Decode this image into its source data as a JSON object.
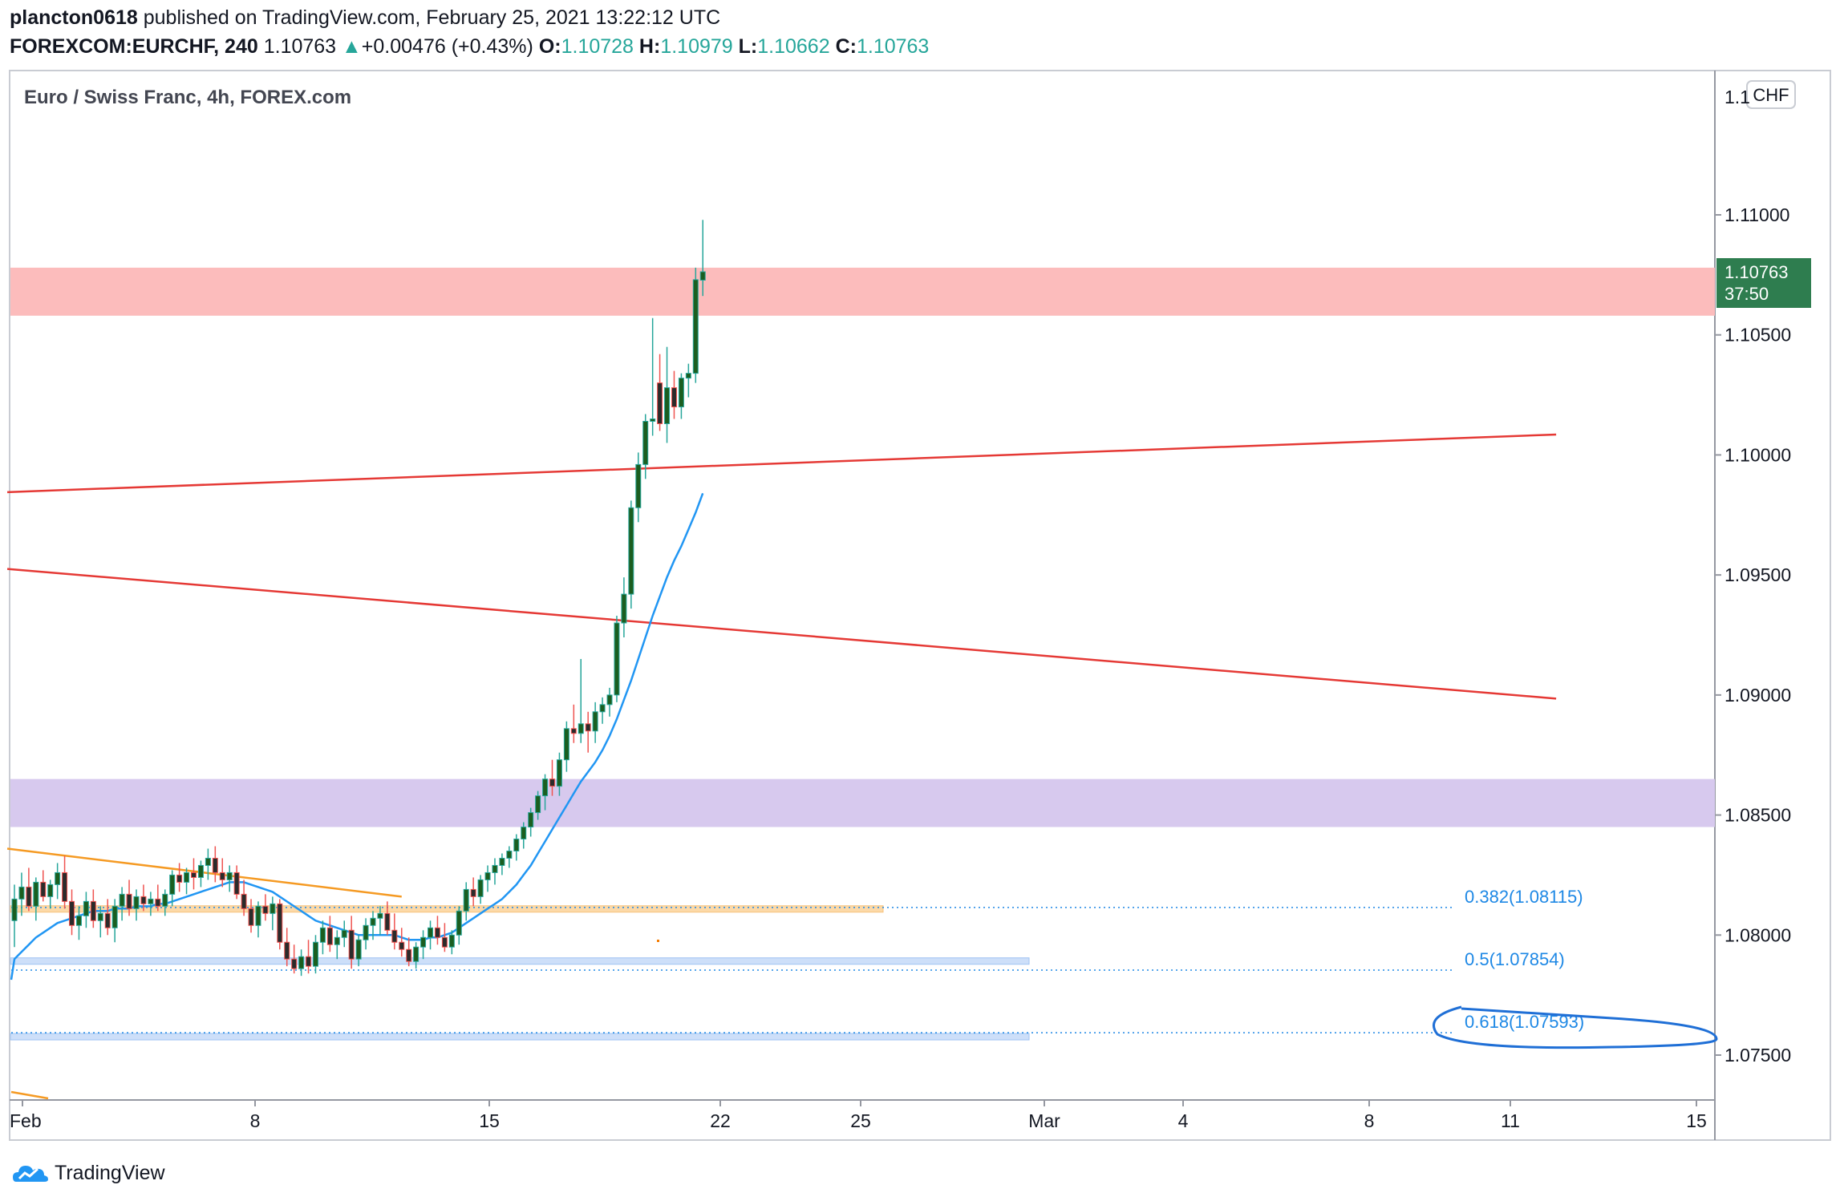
{
  "header": {
    "author": "plancton0618",
    "published": "published on TradingView.com, February 25, 2021 13:22:12 UTC",
    "symbol": "FOREXCOM:EURCHF, 240",
    "last": "1.10763",
    "change_arrow": "▲",
    "change": "+0.00476 (+0.43%)",
    "o_label": "O:",
    "o": "1.10728",
    "h_label": "H:",
    "h": "1.10979",
    "l_label": "L:",
    "l": "1.10662",
    "c_label": "C:",
    "c": "1.10763"
  },
  "footer": {
    "brand": "TradingView",
    "logo_icon": "tradingview-logo-icon"
  },
  "chart_data": {
    "type": "candlestick",
    "title": "Euro / Swiss Franc, 4h, FOREX.com",
    "currency_badge": "CHF",
    "last_price_label": "1.10763",
    "countdown_label": "37:50",
    "ylim": [
      1.0733,
      1.1178
    ],
    "y_ticks": [
      "1.11000",
      "1.10500",
      "1.10000",
      "1.09500",
      "1.09000",
      "1.08500",
      "1.08000",
      "1.07500"
    ],
    "y_top_tick_partial": "1.1",
    "x_ticks": [
      "Feb",
      "8",
      "15",
      "22",
      "25",
      "Mar",
      "4",
      "8",
      "11",
      "15"
    ],
    "colors": {
      "up": "#26a69a",
      "down": "#ef5350",
      "body_up": "#1b5e20",
      "body_down": "#2b2b2b",
      "resistance_zone": "#fcbcbc",
      "support_zone": "#d7c9ee",
      "orange_zone": "#fcd9a8",
      "blue_zone": "#cddff9",
      "trendline": "#e53935",
      "ma": "#2196f3",
      "fib": "#1e88e5",
      "wedge": "#f59a23",
      "last_price_bg": "#2e7d4f"
    },
    "zones": [
      {
        "name": "resistance",
        "from": 1.1058,
        "to": 1.1078,
        "color": "resistance_zone"
      },
      {
        "name": "support",
        "from": 1.0845,
        "to": 1.0865,
        "color": "support_zone"
      }
    ],
    "fib_levels": [
      {
        "label": "0.382(1.08115)",
        "price": 1.08115,
        "circled": false
      },
      {
        "label": "0.5(1.07854)",
        "price": 1.07854,
        "circled": false
      },
      {
        "label": "0.618(1.07593)",
        "price": 1.07593,
        "circled": true
      }
    ],
    "ohlc": [
      {
        "o": 1.0806,
        "h": 1.0821,
        "l": 1.0795,
        "c": 1.0815
      },
      {
        "o": 1.0815,
        "h": 1.0826,
        "l": 1.0808,
        "c": 1.082
      },
      {
        "o": 1.082,
        "h": 1.0828,
        "l": 1.081,
        "c": 1.0812
      },
      {
        "o": 1.0812,
        "h": 1.0824,
        "l": 1.0806,
        "c": 1.0822
      },
      {
        "o": 1.0822,
        "h": 1.0827,
        "l": 1.0814,
        "c": 1.0816
      },
      {
        "o": 1.0816,
        "h": 1.0823,
        "l": 1.0811,
        "c": 1.0821
      },
      {
        "o": 1.0821,
        "h": 1.083,
        "l": 1.0815,
        "c": 1.0826
      },
      {
        "o": 1.0826,
        "h": 1.0833,
        "l": 1.0811,
        "c": 1.0814
      },
      {
        "o": 1.0814,
        "h": 1.0819,
        "l": 1.08,
        "c": 1.0804
      },
      {
        "o": 1.0804,
        "h": 1.0812,
        "l": 1.0798,
        "c": 1.0808
      },
      {
        "o": 1.0808,
        "h": 1.0818,
        "l": 1.0803,
        "c": 1.0814
      },
      {
        "o": 1.0814,
        "h": 1.0819,
        "l": 1.0803,
        "c": 1.0806
      },
      {
        "o": 1.0806,
        "h": 1.0812,
        "l": 1.0799,
        "c": 1.0809
      },
      {
        "o": 1.0809,
        "h": 1.0815,
        "l": 1.08,
        "c": 1.0803
      },
      {
        "o": 1.0803,
        "h": 1.0815,
        "l": 1.0797,
        "c": 1.0812
      },
      {
        "o": 1.0812,
        "h": 1.082,
        "l": 1.0806,
        "c": 1.0817
      },
      {
        "o": 1.0817,
        "h": 1.0823,
        "l": 1.0808,
        "c": 1.0811
      },
      {
        "o": 1.0811,
        "h": 1.0819,
        "l": 1.0806,
        "c": 1.0816
      },
      {
        "o": 1.0816,
        "h": 1.0821,
        "l": 1.081,
        "c": 1.0813
      },
      {
        "o": 1.0813,
        "h": 1.0818,
        "l": 1.0808,
        "c": 1.0815
      },
      {
        "o": 1.0815,
        "h": 1.0821,
        "l": 1.081,
        "c": 1.0812
      },
      {
        "o": 1.0812,
        "h": 1.0819,
        "l": 1.0808,
        "c": 1.0817
      },
      {
        "o": 1.0817,
        "h": 1.0827,
        "l": 1.0812,
        "c": 1.0825
      },
      {
        "o": 1.0825,
        "h": 1.083,
        "l": 1.0818,
        "c": 1.0822
      },
      {
        "o": 1.0822,
        "h": 1.0828,
        "l": 1.0817,
        "c": 1.0826
      },
      {
        "o": 1.0826,
        "h": 1.0832,
        "l": 1.0819,
        "c": 1.0824
      },
      {
        "o": 1.0824,
        "h": 1.0831,
        "l": 1.082,
        "c": 1.0829
      },
      {
        "o": 1.0829,
        "h": 1.0836,
        "l": 1.0823,
        "c": 1.0832
      },
      {
        "o": 1.0832,
        "h": 1.0837,
        "l": 1.0822,
        "c": 1.0826
      },
      {
        "o": 1.0826,
        "h": 1.0832,
        "l": 1.082,
        "c": 1.0823
      },
      {
        "o": 1.0823,
        "h": 1.0829,
        "l": 1.0818,
        "c": 1.0826
      },
      {
        "o": 1.0826,
        "h": 1.0829,
        "l": 1.0815,
        "c": 1.0817
      },
      {
        "o": 1.0817,
        "h": 1.0823,
        "l": 1.0808,
        "c": 1.0811
      },
      {
        "o": 1.0811,
        "h": 1.0815,
        "l": 1.0801,
        "c": 1.0804
      },
      {
        "o": 1.0804,
        "h": 1.0814,
        "l": 1.0799,
        "c": 1.0812
      },
      {
        "o": 1.0812,
        "h": 1.0817,
        "l": 1.0806,
        "c": 1.0809
      },
      {
        "o": 1.0809,
        "h": 1.0816,
        "l": 1.0802,
        "c": 1.0813
      },
      {
        "o": 1.0813,
        "h": 1.0815,
        "l": 1.0794,
        "c": 1.0797
      },
      {
        "o": 1.0797,
        "h": 1.0803,
        "l": 1.0787,
        "c": 1.079
      },
      {
        "o": 1.079,
        "h": 1.0796,
        "l": 1.0784,
        "c": 1.0786
      },
      {
        "o": 1.0786,
        "h": 1.0794,
        "l": 1.0783,
        "c": 1.0791
      },
      {
        "o": 1.0791,
        "h": 1.0798,
        "l": 1.0784,
        "c": 1.0787
      },
      {
        "o": 1.0787,
        "h": 1.08,
        "l": 1.0784,
        "c": 1.0797
      },
      {
        "o": 1.0797,
        "h": 1.0806,
        "l": 1.0792,
        "c": 1.0803
      },
      {
        "o": 1.0803,
        "h": 1.0808,
        "l": 1.0793,
        "c": 1.0796
      },
      {
        "o": 1.0796,
        "h": 1.0802,
        "l": 1.079,
        "c": 1.0799
      },
      {
        "o": 1.0799,
        "h": 1.0806,
        "l": 1.0795,
        "c": 1.0802
      },
      {
        "o": 1.0802,
        "h": 1.0808,
        "l": 1.0786,
        "c": 1.079
      },
      {
        "o": 1.079,
        "h": 1.08,
        "l": 1.0787,
        "c": 1.0798
      },
      {
        "o": 1.0798,
        "h": 1.0807,
        "l": 1.0794,
        "c": 1.0804
      },
      {
        "o": 1.0804,
        "h": 1.081,
        "l": 1.0798,
        "c": 1.0807
      },
      {
        "o": 1.0807,
        "h": 1.0812,
        "l": 1.08,
        "c": 1.0809
      },
      {
        "o": 1.0809,
        "h": 1.0814,
        "l": 1.08,
        "c": 1.0802
      },
      {
        "o": 1.0802,
        "h": 1.0809,
        "l": 1.0794,
        "c": 1.0797
      },
      {
        "o": 1.0797,
        "h": 1.0803,
        "l": 1.0791,
        "c": 1.0794
      },
      {
        "o": 1.0794,
        "h": 1.0799,
        "l": 1.0787,
        "c": 1.0789
      },
      {
        "o": 1.0789,
        "h": 1.0797,
        "l": 1.0786,
        "c": 1.0795
      },
      {
        "o": 1.0795,
        "h": 1.0802,
        "l": 1.079,
        "c": 1.0799
      },
      {
        "o": 1.0799,
        "h": 1.0806,
        "l": 1.0794,
        "c": 1.0803
      },
      {
        "o": 1.0803,
        "h": 1.0808,
        "l": 1.0796,
        "c": 1.0799
      },
      {
        "o": 1.0799,
        "h": 1.0805,
        "l": 1.0793,
        "c": 1.0795
      },
      {
        "o": 1.0795,
        "h": 1.0802,
        "l": 1.0792,
        "c": 1.08
      },
      {
        "o": 1.08,
        "h": 1.0812,
        "l": 1.0796,
        "c": 1.081
      },
      {
        "o": 1.081,
        "h": 1.0822,
        "l": 1.0806,
        "c": 1.0819
      },
      {
        "o": 1.0819,
        "h": 1.0824,
        "l": 1.0812,
        "c": 1.0816
      },
      {
        "o": 1.0816,
        "h": 1.0825,
        "l": 1.0813,
        "c": 1.0823
      },
      {
        "o": 1.0823,
        "h": 1.0829,
        "l": 1.0818,
        "c": 1.0826
      },
      {
        "o": 1.0826,
        "h": 1.0832,
        "l": 1.0821,
        "c": 1.0829
      },
      {
        "o": 1.0829,
        "h": 1.0834,
        "l": 1.0825,
        "c": 1.0832
      },
      {
        "o": 1.0832,
        "h": 1.0837,
        "l": 1.0828,
        "c": 1.0835
      },
      {
        "o": 1.0835,
        "h": 1.0842,
        "l": 1.0831,
        "c": 1.084
      },
      {
        "o": 1.084,
        "h": 1.0847,
        "l": 1.0836,
        "c": 1.0845
      },
      {
        "o": 1.0845,
        "h": 1.0853,
        "l": 1.0841,
        "c": 1.0851
      },
      {
        "o": 1.0851,
        "h": 1.086,
        "l": 1.0848,
        "c": 1.0858
      },
      {
        "o": 1.0858,
        "h": 1.0867,
        "l": 1.0852,
        "c": 1.0865
      },
      {
        "o": 1.0865,
        "h": 1.0873,
        "l": 1.0858,
        "c": 1.0862
      },
      {
        "o": 1.0862,
        "h": 1.0876,
        "l": 1.0858,
        "c": 1.0873
      },
      {
        "o": 1.0873,
        "h": 1.0889,
        "l": 1.0868,
        "c": 1.0886
      },
      {
        "o": 1.0886,
        "h": 1.0896,
        "l": 1.088,
        "c": 1.0884
      },
      {
        "o": 1.0884,
        "h": 1.0915,
        "l": 1.088,
        "c": 1.0888
      },
      {
        "o": 1.0888,
        "h": 1.0893,
        "l": 1.0876,
        "c": 1.0885
      },
      {
        "o": 1.0885,
        "h": 1.0897,
        "l": 1.088,
        "c": 1.0893
      },
      {
        "o": 1.0893,
        "h": 1.0899,
        "l": 1.0888,
        "c": 1.0896
      },
      {
        "o": 1.0896,
        "h": 1.0903,
        "l": 1.0891,
        "c": 1.09
      },
      {
        "o": 1.09,
        "h": 1.0933,
        "l": 1.0897,
        "c": 1.093
      },
      {
        "o": 1.093,
        "h": 1.0949,
        "l": 1.0924,
        "c": 1.0942
      },
      {
        "o": 1.0942,
        "h": 1.0981,
        "l": 1.0936,
        "c": 1.0978
      },
      {
        "o": 1.0978,
        "h": 1.1001,
        "l": 1.0972,
        "c": 1.0996
      },
      {
        "o": 1.0996,
        "h": 1.1017,
        "l": 1.099,
        "c": 1.1014
      },
      {
        "o": 1.1014,
        "h": 1.1057,
        "l": 1.1008,
        "c": 1.1015
      },
      {
        "o": 1.103,
        "h": 1.1042,
        "l": 1.101,
        "c": 1.1013
      },
      {
        "o": 1.1013,
        "h": 1.1045,
        "l": 1.1005,
        "c": 1.1028
      },
      {
        "o": 1.1028,
        "h": 1.1035,
        "l": 1.1015,
        "c": 1.102
      },
      {
        "o": 1.102,
        "h": 1.1034,
        "l": 1.1015,
        "c": 1.1032
      },
      {
        "o": 1.1032,
        "h": 1.1038,
        "l": 1.1024,
        "c": 1.1034
      },
      {
        "o": 1.1034,
        "h": 1.1078,
        "l": 1.103,
        "c": 1.1073
      },
      {
        "o": 1.10728,
        "h": 1.10979,
        "l": 1.10662,
        "c": 1.10763
      }
    ],
    "moving_average": [
      1.079,
      1.0793,
      1.0796,
      1.0799,
      1.0801,
      1.0803,
      1.0805,
      1.0806,
      1.0807,
      1.0808,
      1.0809,
      1.081,
      1.081,
      1.081,
      1.0811,
      1.0811,
      1.0811,
      1.0812,
      1.0812,
      1.0812,
      1.0813,
      1.0813,
      1.0814,
      1.0815,
      1.0816,
      1.0817,
      1.0818,
      1.0819,
      1.082,
      1.0821,
      1.0822,
      1.0822,
      1.0822,
      1.0821,
      1.082,
      1.0819,
      1.0818,
      1.0816,
      1.0814,
      1.0812,
      1.081,
      1.0808,
      1.0806,
      1.0805,
      1.0804,
      1.0803,
      1.0802,
      1.0801,
      1.08,
      1.08,
      1.08,
      1.08,
      1.08,
      1.08,
      1.0799,
      1.0798,
      1.0798,
      1.0798,
      1.0799,
      1.0799,
      1.08,
      1.0801,
      1.0803,
      1.0805,
      1.0807,
      1.0809,
      1.0811,
      1.0813,
      1.0815,
      1.0818,
      1.0821,
      1.0825,
      1.0829,
      1.0834,
      1.0839,
      1.0844,
      1.0849,
      1.0854,
      1.0859,
      1.0864,
      1.0868,
      1.0872,
      1.0877,
      1.0883,
      1.089,
      1.0898,
      1.0906,
      1.0915,
      1.0924,
      1.0933,
      1.0941,
      1.0949,
      1.0956,
      1.0962,
      1.0969,
      1.0976,
      1.0984
    ],
    "trendlines": [
      {
        "name": "upper-red",
        "color": "trendline",
        "from": {
          "bar": -1,
          "price": 1.09845
        },
        "to": {
          "bar": 215,
          "price": 1.10085
        }
      },
      {
        "name": "lower-red",
        "color": "trendline",
        "from": {
          "bar": -1,
          "price": 1.09525
        },
        "to": {
          "bar": 215,
          "price": 1.08985
        }
      },
      {
        "name": "orange-wedge",
        "color": "wedge",
        "from": {
          "bar": -1,
          "price": 1.0836
        },
        "to": {
          "bar": 54,
          "price": 1.0816
        }
      }
    ]
  }
}
